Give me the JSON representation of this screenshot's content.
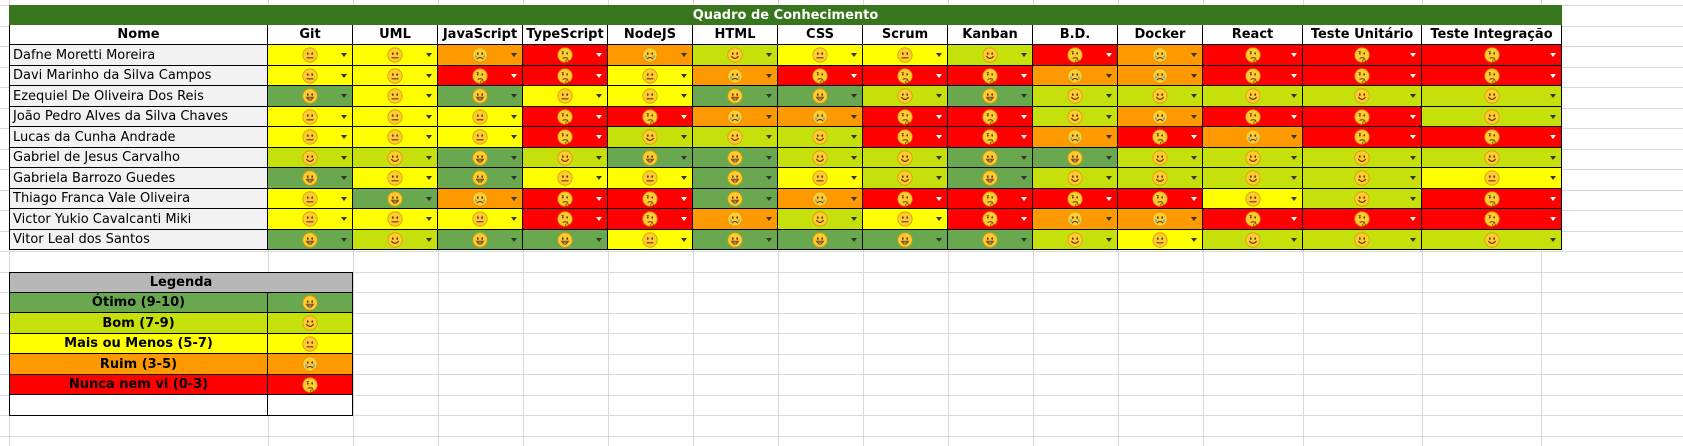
{
  "title": "Quadro de Conhecimento",
  "name_header": "Nome",
  "columns": [
    "Git",
    "UML",
    "JavaScript",
    "TypeScript",
    "NodeJS",
    "HTML",
    "CSS",
    "Scrum",
    "Kanban",
    "B.D.",
    "Docker",
    "React",
    "Teste Unitário",
    "Teste Integração"
  ],
  "levels": {
    "O": {
      "label": "Ótimo (9-10)",
      "color": "#6aa84f",
      "icon": "grinning-face-icon"
    },
    "B": {
      "label": "Bom (7-9)",
      "color": "#c5e00a",
      "icon": "smiling-face-icon"
    },
    "M": {
      "label": "Mais ou Menos (5-7)",
      "color": "#ffff00",
      "icon": "neutral-face-icon"
    },
    "R": {
      "label": "Ruim (3-5)",
      "color": "#ff9900",
      "icon": "crying-face-icon"
    },
    "N": {
      "label": "Nunca nem vi (0-3)",
      "color": "#ff0000",
      "icon": "thinking-face-icon"
    }
  },
  "rows": [
    {
      "name": "Dafne Moretti Moreira",
      "scores": [
        "M",
        "M",
        "R",
        "N",
        "R",
        "B",
        "M",
        "M",
        "B",
        "N",
        "R",
        "N",
        "N",
        "N"
      ]
    },
    {
      "name": "Davi Marinho da Silva Campos",
      "scores": [
        "M",
        "M",
        "N",
        "N",
        "M",
        "R",
        "N",
        "N",
        "N",
        "R",
        "R",
        "N",
        "N",
        "N"
      ]
    },
    {
      "name": "Ezequiel De Oliveira Dos Reis",
      "scores": [
        "O",
        "M",
        "O",
        "M",
        "M",
        "O",
        "O",
        "B",
        "O",
        "B",
        "B",
        "B",
        "B",
        "B"
      ]
    },
    {
      "name": "João Pedro Alves da Silva Chaves",
      "scores": [
        "M",
        "M",
        "M",
        "N",
        "N",
        "R",
        "R",
        "N",
        "N",
        "B",
        "R",
        "N",
        "N",
        "B"
      ]
    },
    {
      "name": "Lucas da Cunha Andrade",
      "scores": [
        "M",
        "M",
        "M",
        "N",
        "B",
        "B",
        "B",
        "N",
        "N",
        "R",
        "N",
        "R",
        "N",
        "N"
      ]
    },
    {
      "name": "Gabriel de Jesus Carvalho",
      "scores": [
        "B",
        "B",
        "O",
        "B",
        "O",
        "O",
        "B",
        "B",
        "O",
        "O",
        "B",
        "B",
        "B",
        "B"
      ]
    },
    {
      "name": "Gabriela Barrozo Guedes",
      "scores": [
        "O",
        "M",
        "O",
        "M",
        "M",
        "O",
        "M",
        "B",
        "O",
        "B",
        "B",
        "B",
        "B",
        "M"
      ]
    },
    {
      "name": "Thiago Franca Vale Oliveira",
      "scores": [
        "M",
        "O",
        "R",
        "N",
        "N",
        "O",
        "R",
        "N",
        "N",
        "N",
        "N",
        "M",
        "B",
        "N"
      ]
    },
    {
      "name": "Victor Yukio Cavalcanti Miki",
      "scores": [
        "M",
        "M",
        "M",
        "N",
        "N",
        "R",
        "B",
        "M",
        "N",
        "R",
        "R",
        "N",
        "N",
        "N"
      ]
    },
    {
      "name": "Vitor Leal dos Santos",
      "scores": [
        "O",
        "B",
        "O",
        "O",
        "M",
        "O",
        "O",
        "O",
        "O",
        "B",
        "M",
        "B",
        "B",
        "B"
      ]
    }
  ],
  "legend": {
    "title": "Legenda",
    "order": [
      "O",
      "B",
      "M",
      "R",
      "N"
    ]
  }
}
